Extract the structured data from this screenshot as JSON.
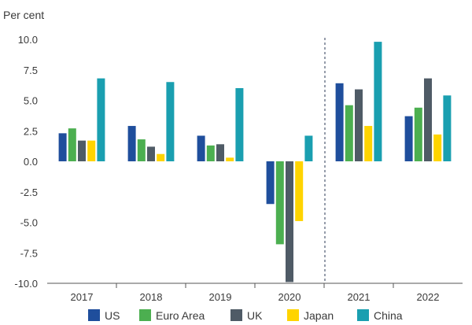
{
  "chart_data": {
    "type": "bar",
    "unit_label": "Per cent",
    "categories": [
      "2017",
      "2018",
      "2019",
      "2020",
      "2021",
      "2022"
    ],
    "ylim": [
      -10,
      10
    ],
    "yticks": [
      "10.0",
      "7.5",
      "5.0",
      "2.5",
      "0.0",
      "-2.5",
      "-5.0",
      "-7.5",
      "-10.0"
    ],
    "grid": false,
    "legend_position": "bottom",
    "forecast_divider_after": "2020",
    "series": [
      {
        "name": "US",
        "color": "#1f4e9c",
        "values": [
          2.3,
          2.9,
          2.1,
          -3.5,
          6.4,
          3.7
        ]
      },
      {
        "name": "Euro Area",
        "color": "#4caf50",
        "values": [
          2.7,
          1.8,
          1.3,
          -6.8,
          4.6,
          4.4
        ]
      },
      {
        "name": "UK",
        "color": "#4f5b66",
        "values": [
          1.7,
          1.2,
          1.4,
          -9.9,
          5.9,
          6.8
        ]
      },
      {
        "name": "Japan",
        "color": "#ffd400",
        "values": [
          1.7,
          0.6,
          0.3,
          -4.9,
          2.9,
          2.2
        ]
      },
      {
        "name": "China",
        "color": "#1a9fb0",
        "values": [
          6.8,
          6.5,
          6.0,
          2.1,
          9.8,
          5.4
        ]
      }
    ]
  }
}
